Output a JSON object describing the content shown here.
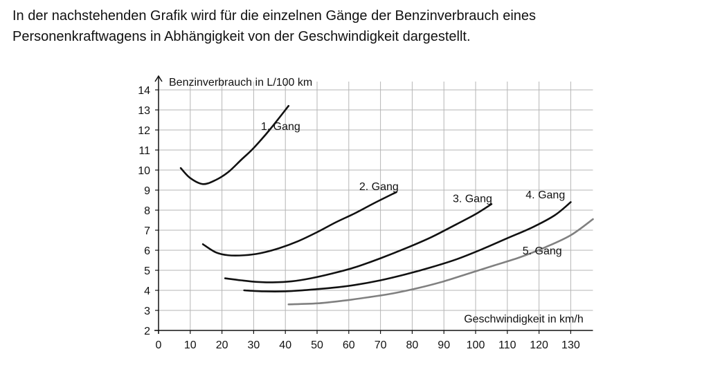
{
  "intro": {
    "line1": "In der nachstehenden Grafik wird für die einzelnen Gänge der Benzinverbrauch eines",
    "line2": "Personenkraftwagens in Abhängigkeit von der Geschwindigkeit dargestellt."
  },
  "chart_data": {
    "type": "line",
    "xlabel": "Geschwindigkeit in km/h",
    "ylabel": "Benzinverbrauch in L/100 km",
    "xlim": [
      0,
      137
    ],
    "ylim": [
      2,
      14
    ],
    "xticks": [
      0,
      10,
      20,
      30,
      40,
      50,
      60,
      70,
      80,
      90,
      100,
      110,
      120,
      130
    ],
    "yticks": [
      2,
      3,
      4,
      5,
      6,
      7,
      8,
      9,
      10,
      11,
      12,
      13,
      14
    ],
    "grid": true,
    "series": [
      {
        "name": "1. Gang",
        "color": "#111111",
        "points": [
          [
            7,
            10.1
          ],
          [
            10,
            9.6
          ],
          [
            14,
            9.3
          ],
          [
            18,
            9.5
          ],
          [
            22,
            9.9
          ],
          [
            26,
            10.5
          ],
          [
            30,
            11.1
          ],
          [
            35,
            12.0
          ],
          [
            41,
            13.2
          ]
        ]
      },
      {
        "name": "2. Gang",
        "color": "#111111",
        "points": [
          [
            14,
            6.3
          ],
          [
            18,
            5.9
          ],
          [
            22,
            5.75
          ],
          [
            27,
            5.75
          ],
          [
            32,
            5.85
          ],
          [
            38,
            6.1
          ],
          [
            44,
            6.45
          ],
          [
            50,
            6.9
          ],
          [
            56,
            7.4
          ],
          [
            62,
            7.85
          ],
          [
            68,
            8.35
          ],
          [
            75,
            8.9
          ]
        ]
      },
      {
        "name": "3. Gang",
        "color": "#111111",
        "points": [
          [
            21,
            4.6
          ],
          [
            26,
            4.5
          ],
          [
            31,
            4.42
          ],
          [
            36,
            4.4
          ],
          [
            42,
            4.45
          ],
          [
            48,
            4.6
          ],
          [
            55,
            4.85
          ],
          [
            62,
            5.15
          ],
          [
            70,
            5.6
          ],
          [
            78,
            6.1
          ],
          [
            86,
            6.65
          ],
          [
            94,
            7.3
          ],
          [
            100,
            7.8
          ],
          [
            105,
            8.3
          ]
        ]
      },
      {
        "name": "4. Gang",
        "color": "#111111",
        "points": [
          [
            27,
            4.0
          ],
          [
            33,
            3.95
          ],
          [
            40,
            3.95
          ],
          [
            47,
            4.02
          ],
          [
            55,
            4.13
          ],
          [
            62,
            4.27
          ],
          [
            70,
            4.5
          ],
          [
            78,
            4.8
          ],
          [
            86,
            5.15
          ],
          [
            94,
            5.55
          ],
          [
            102,
            6.05
          ],
          [
            110,
            6.6
          ],
          [
            118,
            7.15
          ],
          [
            125,
            7.75
          ],
          [
            130,
            8.4
          ]
        ]
      },
      {
        "name": "5. Gang",
        "color": "#808080",
        "points": [
          [
            41,
            3.3
          ],
          [
            50,
            3.35
          ],
          [
            58,
            3.48
          ],
          [
            66,
            3.65
          ],
          [
            74,
            3.85
          ],
          [
            82,
            4.12
          ],
          [
            90,
            4.45
          ],
          [
            98,
            4.85
          ],
          [
            106,
            5.25
          ],
          [
            114,
            5.65
          ],
          [
            122,
            6.15
          ],
          [
            130,
            6.75
          ],
          [
            137,
            7.55
          ]
        ]
      }
    ],
    "series_labels": [
      {
        "text": "1. Gang",
        "x": 38.5,
        "y": 12.2
      },
      {
        "text": "2. Gang",
        "x": 69.5,
        "y": 9.2
      },
      {
        "text": "3. Gang",
        "x": 99,
        "y": 8.6
      },
      {
        "text": "4. Gang",
        "x": 122,
        "y": 8.8
      },
      {
        "text": "5. Gang",
        "x": 121,
        "y": 6.0
      }
    ]
  }
}
